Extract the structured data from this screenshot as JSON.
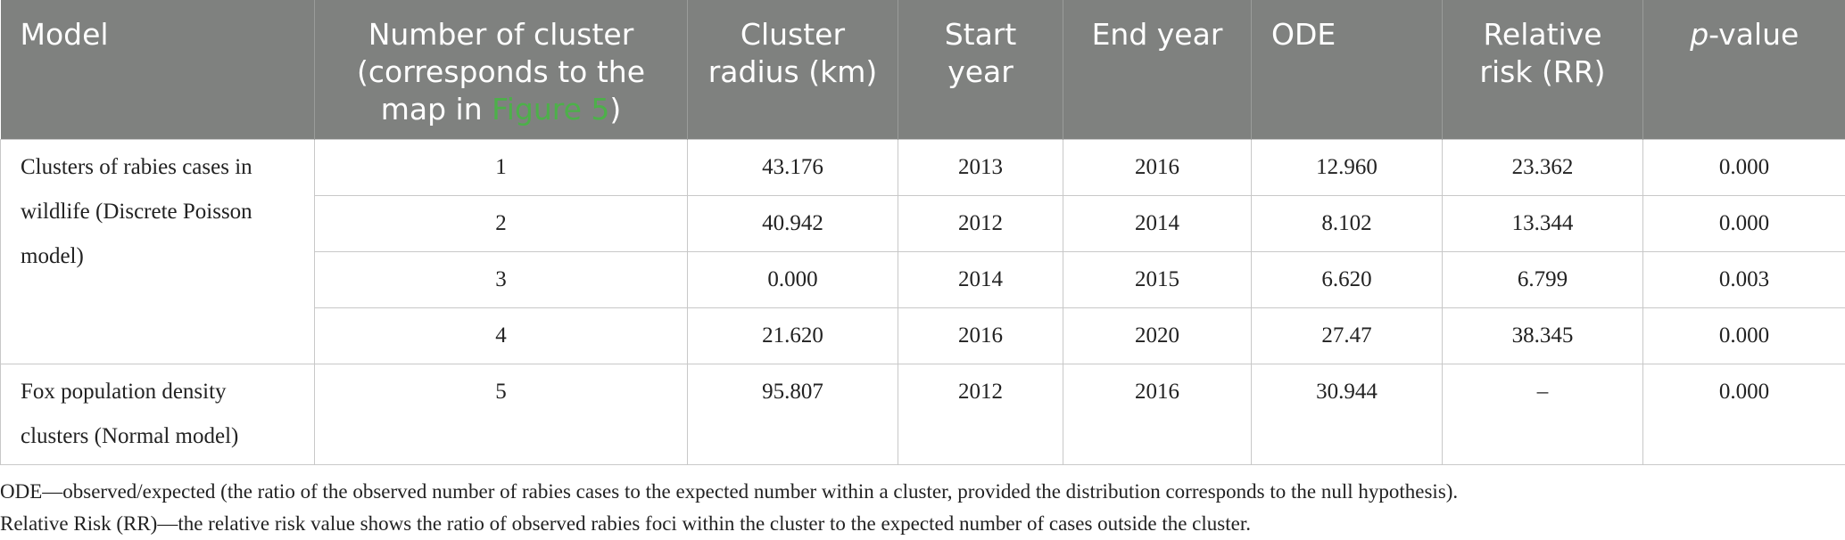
{
  "table": {
    "header": [
      {
        "text": "Model"
      },
      {
        "text": "Number of cluster (corresponds to the map in ",
        "link": "Figure 5",
        "after": ")"
      },
      {
        "text": "Cluster radius (km)"
      },
      {
        "text": "Start year"
      },
      {
        "text": "End year"
      },
      {
        "text": "ODE"
      },
      {
        "text": "Relative risk (RR)"
      },
      {
        "italic": "p",
        "text": "-value"
      }
    ],
    "groups": [
      {
        "model": "Clusters of rabies cases in wildlife (Discrete Poisson model)",
        "rows": [
          [
            "1",
            "43.176",
            "2013",
            "2016",
            "12.960",
            "23.362",
            "0.000"
          ],
          [
            "2",
            "40.942",
            "2012",
            "2014",
            "8.102",
            "13.344",
            "0.000"
          ],
          [
            "3",
            "0.000",
            "2014",
            "2015",
            "6.620",
            "6.799",
            "0.003"
          ],
          [
            "4",
            "21.620",
            "2016",
            "2020",
            "27.47",
            "38.345",
            "0.000"
          ]
        ]
      },
      {
        "model": "Fox population density clusters (Normal model)",
        "rows": [
          [
            "5",
            "95.807",
            "2012",
            "2016",
            "30.944",
            "–",
            "0.000"
          ]
        ]
      }
    ]
  },
  "footnotes": [
    "ODE—observed/expected (the ratio of the observed number of rabies cases to the expected number within a cluster, provided the distribution corresponds to the null hypothesis).",
    "Relative Risk (RR)—the relative risk value shows the ratio of observed rabies foci within the cluster to the expected number of cases outside the cluster."
  ]
}
